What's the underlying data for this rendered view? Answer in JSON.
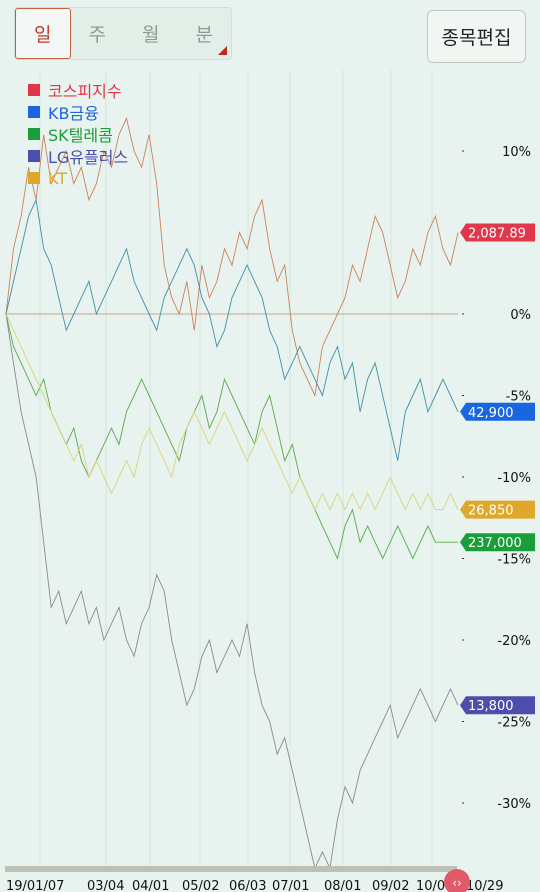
{
  "period_tabs": [
    {
      "label": "일",
      "active": true
    },
    {
      "label": "주",
      "active": false
    },
    {
      "label": "월",
      "active": false
    },
    {
      "label": "분",
      "active": false
    }
  ],
  "edit_button": "종목편집",
  "chart_data": {
    "type": "line",
    "title": "",
    "x_ticks": [
      "19/01/07",
      "03/04",
      "04/01",
      "05/02",
      "06/03",
      "07/01",
      "08/01",
      "09/02",
      "10/0",
      "10/29"
    ],
    "y_ticks": [
      "10%",
      "5%",
      "0%",
      "-5%",
      "-10%",
      "-15%",
      "-20%",
      "-25%",
      "-30%"
    ],
    "ylim": [
      -35,
      12
    ],
    "grid": "vertical lines at x ticks",
    "legend_position": "top-left",
    "series": [
      {
        "name": "코스피지수",
        "color": "#e0374a",
        "line_color": "#c98259",
        "last_value_label": "2,087.89",
        "values": [
          0,
          4,
          6,
          9,
          7,
          11,
          8,
          9,
          10,
          8,
          9,
          7,
          8,
          10,
          9,
          11,
          12,
          10,
          9,
          11,
          8,
          3,
          1,
          0,
          2,
          -1,
          3,
          1,
          2,
          4,
          3,
          5,
          4,
          6,
          7,
          4,
          2,
          3,
          -1,
          -3,
          -4,
          -5,
          -2,
          -1,
          0,
          1,
          3,
          2,
          4,
          6,
          5,
          3,
          1,
          2,
          4,
          3,
          5,
          6,
          4,
          3,
          5
        ]
      },
      {
        "name": "KB금융",
        "color": "#1a65e0",
        "line_color": "#3f8fa6",
        "last_value_label": "42,900",
        "values": [
          0,
          2,
          4,
          6,
          7,
          4,
          3,
          1,
          -1,
          0,
          1,
          2,
          0,
          1,
          2,
          3,
          4,
          2,
          1,
          0,
          -1,
          1,
          2,
          3,
          4,
          3,
          1,
          0,
          -2,
          -1,
          1,
          2,
          3,
          2,
          1,
          -1,
          -2,
          -4,
          -3,
          -2,
          -3,
          -4,
          -5,
          -3,
          -2,
          -4,
          -3,
          -6,
          -4,
          -3,
          -5,
          -7,
          -9,
          -6,
          -5,
          -4,
          -6,
          -5,
          -4,
          -5,
          -6
        ]
      },
      {
        "name": "SK텔레콤",
        "color": "#1a9e3a",
        "line_color": "#5aa84a",
        "last_value_label": "237,000",
        "values": [
          0,
          -2,
          -3,
          -4,
          -5,
          -4,
          -6,
          -7,
          -8,
          -7,
          -9,
          -10,
          -9,
          -8,
          -7,
          -8,
          -6,
          -5,
          -4,
          -5,
          -6,
          -7,
          -8,
          -9,
          -7,
          -6,
          -5,
          -7,
          -6,
          -4,
          -5,
          -6,
          -7,
          -8,
          -6,
          -5,
          -7,
          -9,
          -8,
          -10,
          -11,
          -12,
          -13,
          -14,
          -15,
          -13,
          -12,
          -14,
          -13,
          -14,
          -15,
          -14,
          -13,
          -14,
          -15,
          -14,
          -13,
          -14,
          -14,
          -14,
          -14
        ]
      },
      {
        "name": "LG유플러스",
        "color": "#4d4dab",
        "line_color": "#8a8a8a",
        "last_value_label": "13,800",
        "values": [
          0,
          -3,
          -6,
          -8,
          -10,
          -14,
          -18,
          -17,
          -19,
          -18,
          -17,
          -19,
          -18,
          -20,
          -19,
          -18,
          -20,
          -21,
          -19,
          -18,
          -16,
          -17,
          -20,
          -22,
          -24,
          -23,
          -21,
          -20,
          -22,
          -21,
          -20,
          -21,
          -19,
          -22,
          -24,
          -25,
          -27,
          -26,
          -28,
          -30,
          -32,
          -34,
          -33,
          -34,
          -31,
          -29,
          -30,
          -28,
          -27,
          -26,
          -25,
          -24,
          -26,
          -25,
          -24,
          -23,
          -24,
          -25,
          -24,
          -23,
          -24
        ]
      },
      {
        "name": "KT",
        "color": "#e0a82a",
        "line_color": "#d8d47a",
        "last_value_label": "26,850",
        "values": [
          0,
          -1,
          -2,
          -3,
          -4,
          -5,
          -6,
          -7,
          -8,
          -9,
          -8,
          -10,
          -9,
          -10,
          -11,
          -10,
          -9,
          -10,
          -8,
          -7,
          -8,
          -9,
          -10,
          -8,
          -7,
          -6,
          -7,
          -8,
          -7,
          -6,
          -7,
          -8,
          -9,
          -8,
          -7,
          -8,
          -9,
          -10,
          -11,
          -10,
          -11,
          -12,
          -11,
          -12,
          -11,
          -12,
          -11,
          -12,
          -11,
          -12,
          -11,
          -10,
          -11,
          -12,
          -11,
          -12,
          -11,
          -12,
          -12,
          -11,
          -12
        ]
      }
    ],
    "baseline": 0
  }
}
